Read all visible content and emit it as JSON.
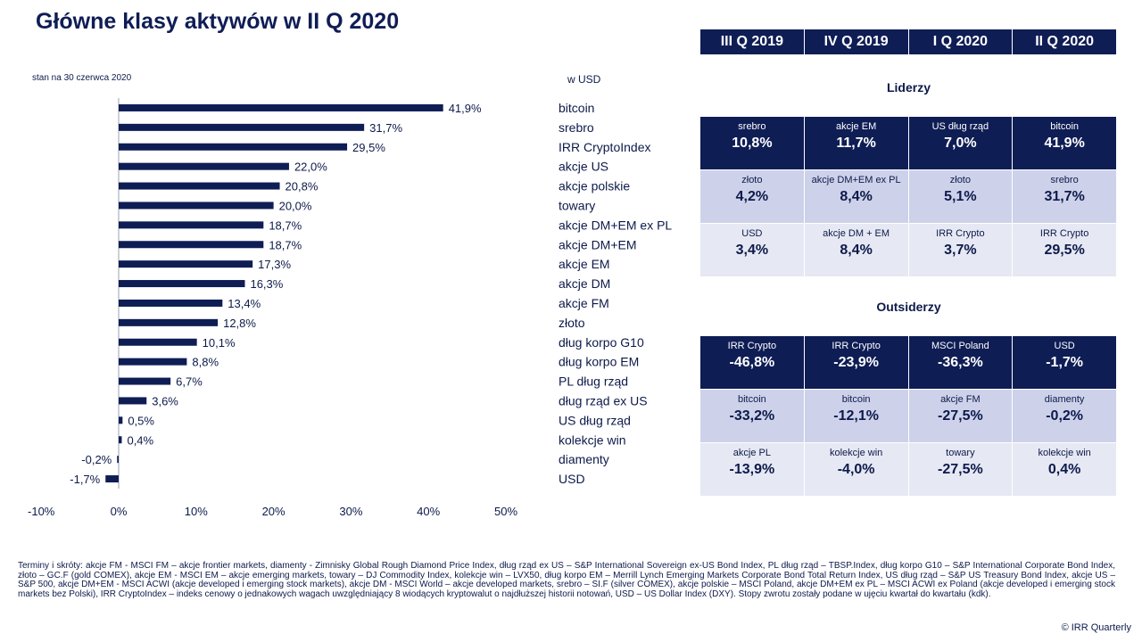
{
  "title": "Główne klasy aktywów w II Q 2020",
  "as_of": "stan na 30 czerwca 2020",
  "unit_label": "w USD",
  "colors": {
    "navy": "#0f1d55",
    "light": "#cdd2ea",
    "lighter": "#e6e8f3"
  },
  "chart_data": {
    "type": "bar",
    "orientation": "horizontal",
    "categories": [
      "bitcoin",
      "srebro",
      "IRR CryptoIndex",
      "akcje US",
      "akcje polskie",
      "towary",
      "akcje DM+EM ex PL",
      "akcje DM+EM",
      "akcje EM",
      "akcje DM",
      "akcje FM",
      "złoto",
      "dług korpo G10",
      "dług korpo EM",
      "PL dług rząd",
      "dług rząd ex US",
      "US dług rząd",
      "kolekcje win",
      "diamenty",
      "USD"
    ],
    "values": [
      41.9,
      31.7,
      29.5,
      22.0,
      20.8,
      20.0,
      18.7,
      18.7,
      17.3,
      16.3,
      13.4,
      12.8,
      10.1,
      8.8,
      6.7,
      3.6,
      0.5,
      0.4,
      -0.2,
      -1.7
    ],
    "value_labels": [
      "41,9%",
      "31,7%",
      "29,5%",
      "22,0%",
      "20,8%",
      "20,0%",
      "18,7%",
      "18,7%",
      "17,3%",
      "16,3%",
      "13,4%",
      "12,8%",
      "10,1%",
      "8,8%",
      "6,7%",
      "3,6%",
      "0,5%",
      "0,4%",
      "-0,2%",
      "-1,7%"
    ],
    "xlim": [
      -10,
      50
    ],
    "x_ticks": [
      -10,
      0,
      10,
      20,
      30,
      40,
      50
    ],
    "x_tick_labels": [
      "-10%",
      "0%",
      "10%",
      "20%",
      "30%",
      "40%",
      "50%"
    ],
    "grid": false
  },
  "table": {
    "quarters": [
      "III Q 2019",
      "IV Q 2019",
      "I Q 2020",
      "II Q 2020"
    ],
    "leaders_title": "Liderzy",
    "leaders": [
      [
        {
          "name": "srebro",
          "value": "10,8%"
        },
        {
          "name": "akcje EM",
          "value": "11,7%"
        },
        {
          "name": "US dług rząd",
          "value": "7,0%"
        },
        {
          "name": "bitcoin",
          "value": "41,9%"
        }
      ],
      [
        {
          "name": "złoto",
          "value": "4,2%"
        },
        {
          "name": "akcje DM+EM ex PL",
          "value": "8,4%"
        },
        {
          "name": "złoto",
          "value": "5,1%"
        },
        {
          "name": "srebro",
          "value": "31,7%"
        }
      ],
      [
        {
          "name": "USD",
          "value": "3,4%"
        },
        {
          "name": "akcje DM + EM",
          "value": "8,4%"
        },
        {
          "name": "IRR Crypto",
          "value": "3,7%"
        },
        {
          "name": "IRR Crypto",
          "value": "29,5%"
        }
      ]
    ],
    "outsiders_title": "Outsiderzy",
    "outsiders": [
      [
        {
          "name": "IRR Crypto",
          "value": "-46,8%"
        },
        {
          "name": "IRR Crypto",
          "value": "-23,9%"
        },
        {
          "name": "MSCI Poland",
          "value": "-36,3%"
        },
        {
          "name": "USD",
          "value": "-1,7%"
        }
      ],
      [
        {
          "name": "bitcoin",
          "value": "-33,2%"
        },
        {
          "name": "bitcoin",
          "value": "-12,1%"
        },
        {
          "name": "akcje FM",
          "value": "-27,5%"
        },
        {
          "name": "diamenty",
          "value": "-0,2%"
        }
      ],
      [
        {
          "name": "akcje PL",
          "value": "-13,9%"
        },
        {
          "name": "kolekcje win",
          "value": "-4,0%"
        },
        {
          "name": "towary",
          "value": "-27,5%"
        },
        {
          "name": "kolekcje win",
          "value": "0,4%"
        }
      ]
    ]
  },
  "footnote": "Terminy i skróty: akcje FM - MSCI FM – akcje frontier markets, diamenty - Zimnisky Global Rough Diamond Price Index, dług rząd ex US – S&P International Sovereign ex-US Bond Index, PL dług rząd – TBSP.Index, dług korpo G10 – S&P International Corporate Bond Index, złoto – GC.F (gold COMEX), akcje EM - MSCI EM – akcje emerging markets, towary – DJ Commodity Index, kolekcje win – LVX50, dług korpo EM – Merrill Lynch Emerging Markets Corporate Bond Total Return Index, US dług rząd – S&P US Treasury Bond Index, akcje US – S&P 500, akcje DM+EM - MSCI ACWI (akcje developed i emerging stock markets), akcje DM - MSCI World – akcje developed markets, srebro – SI.F (silver COMEX), akcje polskie – MSCI Poland, akcje DM+EM ex PL – MSCI ACWI ex Poland (akcje developed i emerging stock markets bez Polski), IRR CryptoIndex – indeks cenowy o jednakowych wagach uwzględniający 8 wiodących kryptowalut o najdłuższej historii notowań, USD – US Dollar Index (DXY). Stopy zwrotu zostały podane w ujęciu kwartał do kwartału (kdk).",
  "copyright": "© IRR Quarterly"
}
